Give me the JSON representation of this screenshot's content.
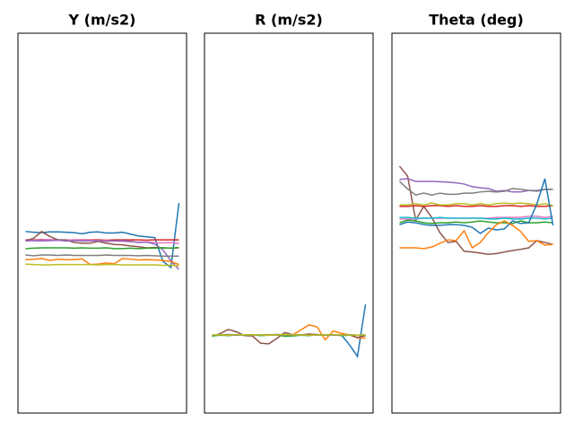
{
  "chart_data": [
    {
      "type": "line",
      "title": "Y (m/s2)",
      "ylim": [
        0,
        100
      ],
      "series": [
        {
          "color": "#1f77b4",
          "values": [
            47.8,
            47.6,
            47.5,
            47.7,
            47.7,
            47.6,
            47.5,
            47.2,
            47.6,
            47.7,
            47.4,
            47.4,
            47.6,
            47.1,
            46.6,
            46.4,
            46.2,
            40,
            38.3,
            55.3
          ]
        },
        {
          "color": "#d62728",
          "values": [
            45.6,
            45.6,
            45.7,
            45.6,
            45.6,
            45.5,
            45.6,
            45.6,
            45.6,
            45.6,
            45.5,
            45.6,
            45.6,
            45.6,
            45.6,
            45.5,
            45.6,
            45.6,
            45.6,
            45.6
          ]
        },
        {
          "color": "#e377c2",
          "values": [
            45.7,
            45.5,
            45.6,
            45.7,
            45.5,
            45.5,
            45.6,
            45.5,
            45.5,
            45.4,
            45.4,
            45.3,
            45.2,
            45.1,
            45.0,
            45.0,
            44.9,
            44.8,
            44.9,
            44.6
          ]
        },
        {
          "color": "#8c564b",
          "values": [
            45.4,
            46,
            47.8,
            46.5,
            45.6,
            45.6,
            44.9,
            44.7,
            44.7,
            45.2,
            44.7,
            44.4,
            44.3,
            44.0,
            43.8,
            43.5,
            43.6,
            43.5,
            43.4,
            43.5
          ]
        },
        {
          "color": "#9467bd",
          "values": [
            45.3,
            45.4,
            45.3,
            45.4,
            45.5,
            45.3,
            45.4,
            45.3,
            45.3,
            45.4,
            45.2,
            45.3,
            45.4,
            45.2,
            44.9,
            45.0,
            44.5,
            43.0,
            40.1,
            37.8
          ]
        },
        {
          "color": "#2ca02c",
          "values": [
            43.3,
            43.4,
            43.5,
            43.5,
            43.5,
            43.5,
            43.4,
            43.5,
            43.4,
            43.4,
            43.5,
            43.3,
            43.3,
            43.4,
            43.3,
            43.4,
            43.4,
            43.5,
            43.4,
            43.6
          ]
        },
        {
          "color": "#7f7f7f",
          "values": [
            41.6,
            41.4,
            41.6,
            41.6,
            41.5,
            41.6,
            41.5,
            41.5,
            41.5,
            41.5,
            41.6,
            41.5,
            41.5,
            41.5,
            41.4,
            41.5,
            41.4,
            41.3,
            41.3,
            41.3
          ]
        },
        {
          "color": "#ff7f0e",
          "values": [
            40.4,
            40.5,
            40.7,
            40.2,
            40.5,
            40.4,
            40.4,
            40.6,
            39.1,
            39.2,
            39.5,
            39.3,
            40.7,
            40.5,
            40.3,
            40.4,
            40.3,
            40.2,
            39.9,
            39.1
          ]
        },
        {
          "color": "#bcbd22",
          "values": [
            39.2,
            39.1,
            39.0,
            39.0,
            39.1,
            39.1,
            39.1,
            39.1,
            39.1,
            39.0,
            39.1,
            39.1,
            39.0,
            39.0,
            39.0,
            39.0,
            39.0,
            38.9,
            38.9,
            38.8
          ]
        }
      ]
    },
    {
      "type": "line",
      "title": "R (m/s2)",
      "ylim": [
        0,
        100
      ],
      "series": [
        {
          "color": "#1f77b4",
          "values": [
            20.4,
            20.6,
            20.7,
            20.6,
            20.5,
            20.5,
            20.5,
            20.6,
            20.7,
            20.6,
            20.6,
            20.5,
            20.6,
            20.6,
            20.5,
            20.5,
            20.6,
            18,
            14.9,
            28.6
          ]
        },
        {
          "color": "#ff7f0e",
          "values": [
            20.5,
            20.6,
            20.6,
            20.5,
            20.6,
            20.6,
            20.5,
            20.6,
            20.6,
            20.7,
            20.6,
            21.9,
            23.2,
            22.7,
            19.3,
            21.6,
            21.0,
            20.6,
            19.8,
            19.7
          ]
        },
        {
          "color": "#8c564b",
          "values": [
            20.2,
            20.9,
            22.0,
            21.4,
            20.4,
            20.3,
            18.4,
            18.2,
            19.6,
            21.2,
            20.6,
            20.6,
            20.8,
            20.7,
            20.5,
            20.6,
            20.5,
            20.6,
            19.9,
            20.4
          ]
        },
        {
          "color": "#2ca02c",
          "values": [
            20.3,
            20.5,
            20.4,
            20.6,
            20.5,
            20.6,
            20.4,
            20.5,
            20.6,
            20.2,
            20.3,
            20.5,
            20.4,
            20.6,
            20.5,
            20.6,
            20.4,
            20.5,
            20.5,
            20.6
          ]
        },
        {
          "color": "#7f7f7f",
          "values": [
            20.5,
            20.6,
            20.5,
            20.5,
            20.6,
            20.5,
            20.6,
            20.5,
            20.5,
            20.6,
            20.5,
            20.6,
            20.5,
            20.5,
            20.6,
            20.5,
            20.5,
            20.6,
            20.5,
            20.5
          ]
        },
        {
          "color": "#bcbd22",
          "values": [
            20.6,
            20.6,
            20.5,
            20.7,
            20.6,
            20.6,
            20.6,
            20.5,
            20.6,
            20.7,
            20.6,
            20.6,
            20.5,
            20.6,
            20.6,
            20.7,
            20.6,
            20.6,
            20.5,
            20.6
          ]
        }
      ]
    },
    {
      "type": "line",
      "title": "Theta (deg)",
      "ylim": [
        0,
        100
      ],
      "series": [
        {
          "color": "#8c564b",
          "values": [
            65,
            62.4,
            50.8,
            54.4,
            51.5,
            47.5,
            44.9,
            45.2,
            42.6,
            42.4,
            42.1,
            41.8,
            42.0,
            42.4,
            42.8,
            43.1,
            43.5,
            45.4,
            44.9,
            44.4
          ]
        },
        {
          "color": "#9467bd",
          "values": [
            61.5,
            61.7,
            61.0,
            61.0,
            61.0,
            60.9,
            60.8,
            60.6,
            60.3,
            59.6,
            59.3,
            59.1,
            58.4,
            58.6,
            58.2,
            58.2,
            58.6,
            58.6,
            58.9,
            58.9
          ]
        },
        {
          "color": "#7f7f7f",
          "values": [
            61.0,
            59.0,
            57.4,
            57.9,
            57.4,
            57.9,
            57.6,
            57.6,
            57.9,
            57.9,
            58.2,
            58.4,
            58.2,
            58.4,
            59.1,
            58.9,
            58.6,
            58.4,
            58.9,
            58.9
          ]
        },
        {
          "color": "#d62728",
          "values": [
            54.4,
            54.4,
            54.6,
            54.4,
            54.6,
            54.6,
            54.4,
            54.6,
            54.4,
            54.4,
            54.6,
            54.4,
            54.4,
            54.6,
            54.6,
            54.4,
            54.6,
            54.4,
            54.4,
            54.6
          ]
        },
        {
          "color": "#bcbd22",
          "values": [
            54.8,
            54.8,
            55.1,
            54.8,
            55.3,
            54.8,
            54.8,
            55.1,
            55.1,
            54.8,
            55.1,
            54.8,
            55.1,
            55.3,
            55.1,
            55.3,
            55.1,
            54.8,
            55.1,
            54.6
          ]
        },
        {
          "color": "#e377c2",
          "values": [
            51.1,
            51.1,
            51.1,
            51.3,
            51.3,
            51.3,
            51.3,
            51.3,
            51.3,
            51.3,
            51.3,
            51.3,
            51.5,
            51.5,
            51.5,
            51.5,
            51.8,
            51.8,
            51.5,
            51.8
          ]
        },
        {
          "color": "#17becf",
          "values": [
            51.5,
            51.5,
            51.3,
            51.3,
            51.3,
            51.5,
            51.3,
            51.3,
            51.3,
            51.3,
            51.3,
            51.1,
            51.1,
            51.3,
            51.1,
            51.1,
            51.3,
            51.3,
            51.1,
            51.3
          ]
        },
        {
          "color": "#2ca02c",
          "values": [
            50.1,
            50.8,
            50.6,
            50.1,
            49.9,
            50.1,
            50.1,
            50.3,
            50.1,
            50.3,
            50.6,
            50.3,
            50.1,
            50.1,
            49.9,
            50.6,
            50.1,
            50.1,
            50.3,
            50.1
          ]
        },
        {
          "color": "#1f77b4",
          "values": [
            49.6,
            50.3,
            50.1,
            49.6,
            49.4,
            49.4,
            49.6,
            49.6,
            49.4,
            48.9,
            47.3,
            48.7,
            48.2,
            48.5,
            50.6,
            49.9,
            50.1,
            55,
            61.7,
            49.4
          ]
        },
        {
          "color": "#ff7f0e",
          "values": [
            43.5,
            43.5,
            43.5,
            43.3,
            43.7,
            44.7,
            45.6,
            45.4,
            48.0,
            43.5,
            44.9,
            47.5,
            49.6,
            50.6,
            49.4,
            47.8,
            45.2,
            45.4,
            44.2,
            44.4
          ]
        }
      ]
    }
  ]
}
